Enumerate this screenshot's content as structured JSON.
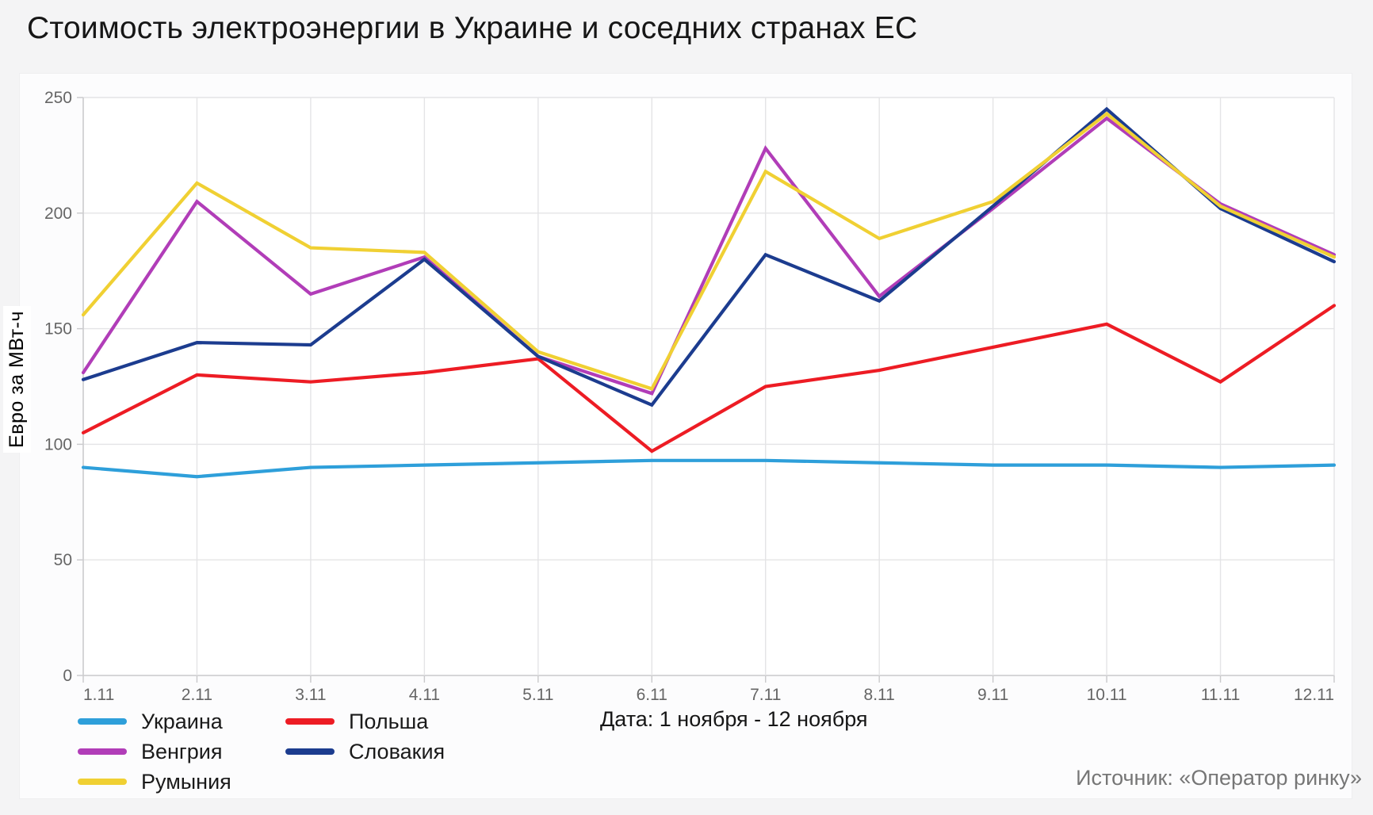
{
  "title": "Стоимость электроэнергии в Украине и соседних странах ЕС",
  "chart_data": {
    "type": "line",
    "categories": [
      "1.11",
      "2.11",
      "3.11",
      "4.11",
      "5.11",
      "6.11",
      "7.11",
      "8.11",
      "9.11",
      "10.11",
      "11.11",
      "12.11"
    ],
    "series": [
      {
        "name": "Украина",
        "color": "#2E9FDA",
        "values": [
          90,
          86,
          90,
          91,
          92,
          93,
          93,
          92,
          91,
          91,
          90,
          91
        ]
      },
      {
        "name": "Польша",
        "color": "#ED1C24",
        "values": [
          105,
          130,
          127,
          131,
          137,
          97,
          125,
          132,
          142,
          152,
          127,
          160
        ]
      },
      {
        "name": "Венгрия",
        "color": "#B13DB8",
        "values": [
          131,
          205,
          165,
          181,
          138,
          122,
          228,
          164,
          202,
          241,
          204,
          182
        ]
      },
      {
        "name": "Словакия",
        "color": "#1C3C8F",
        "values": [
          128,
          144,
          143,
          180,
          138,
          117,
          182,
          162,
          203,
          245,
          202,
          179
        ]
      },
      {
        "name": "Румыния",
        "color": "#F0D033",
        "values": [
          156,
          213,
          185,
          183,
          140,
          124,
          218,
          189,
          205,
          243,
          203,
          181
        ]
      }
    ],
    "title": "Стоимость электроэнергии в Украине и соседних странах ЕС",
    "xlabel": "",
    "ylabel": "Евро за МВт-ч",
    "ylim": [
      0,
      250
    ],
    "yticks": [
      0,
      50,
      100,
      150,
      200,
      250
    ],
    "grid": true,
    "legend_position": "bottom-left"
  },
  "notes": {
    "date_range": "Дата: 1 ноября - 12 ноября",
    "source": "Источник: «Оператор ринку»"
  },
  "colors": {
    "page_background": "#f4f4f5",
    "card_background": "#fcfcfd",
    "plot_background": "#ffffff",
    "gridline": "#e4e4e6",
    "axis_line": "#c9c9cb",
    "tick_label": "#666666"
  }
}
